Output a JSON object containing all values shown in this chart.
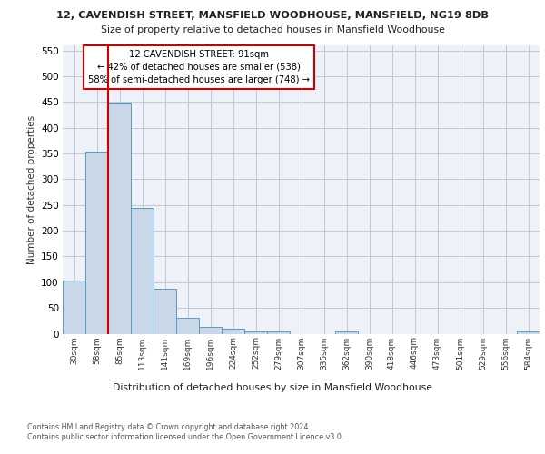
{
  "title1": "12, CAVENDISH STREET, MANSFIELD WOODHOUSE, MANSFIELD, NG19 8DB",
  "title2": "Size of property relative to detached houses in Mansfield Woodhouse",
  "xlabel": "Distribution of detached houses by size in Mansfield Woodhouse",
  "ylabel": "Number of detached properties",
  "footer1": "Contains HM Land Registry data © Crown copyright and database right 2024.",
  "footer2": "Contains public sector information licensed under the Open Government Licence v3.0.",
  "bin_labels": [
    "30sqm",
    "58sqm",
    "85sqm",
    "113sqm",
    "141sqm",
    "169sqm",
    "196sqm",
    "224sqm",
    "252sqm",
    "279sqm",
    "307sqm",
    "335sqm",
    "362sqm",
    "390sqm",
    "418sqm",
    "446sqm",
    "473sqm",
    "501sqm",
    "529sqm",
    "556sqm",
    "584sqm"
  ],
  "bar_values": [
    103,
    353,
    449,
    245,
    87,
    30,
    13,
    9,
    5,
    5,
    0,
    0,
    5,
    0,
    0,
    0,
    0,
    0,
    0,
    0,
    5
  ],
  "bar_color": "#c8d8e8",
  "bar_edge_color": "#5a9abf",
  "grid_color": "#c0c8d8",
  "bg_color": "#eef2f8",
  "property_line_x": 1.5,
  "property_line_color": "#cc0000",
  "annotation_text": "12 CAVENDISH STREET: 91sqm\n← 42% of detached houses are smaller (538)\n58% of semi-detached houses are larger (748) →",
  "annotation_box_color": "#ffffff",
  "annotation_box_edge": "#cc0000",
  "ylim": [
    0,
    560
  ],
  "yticks": [
    0,
    50,
    100,
    150,
    200,
    250,
    300,
    350,
    400,
    450,
    500,
    550
  ]
}
